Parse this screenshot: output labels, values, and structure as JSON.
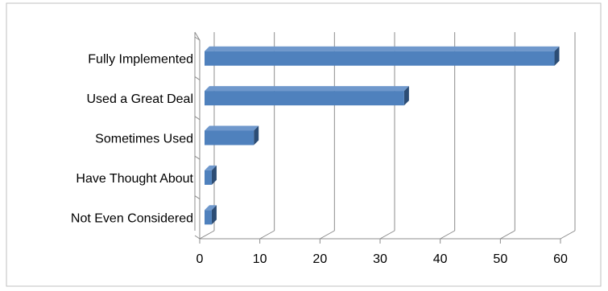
{
  "chart_data": {
    "type": "bar",
    "orientation": "horizontal",
    "style": "3d",
    "categories": [
      "Fully Implemented",
      "Used a Great Deal",
      "Sometimes Used",
      "Have Thought About",
      "Not Even Considered"
    ],
    "values": [
      59,
      34,
      9,
      2,
      2
    ],
    "xlim": [
      0,
      60
    ],
    "xticks": [
      0,
      10,
      20,
      30,
      40,
      50,
      60
    ],
    "grid": true,
    "legend": "none",
    "title": "",
    "xlabel": "",
    "ylabel": "",
    "colors": {
      "bar_front": "#4f81bd",
      "bar_top": "#6f98cc",
      "bar_side": "#2c4d75",
      "grid": "#8c8c8c",
      "border": "#bfbfbf"
    }
  }
}
